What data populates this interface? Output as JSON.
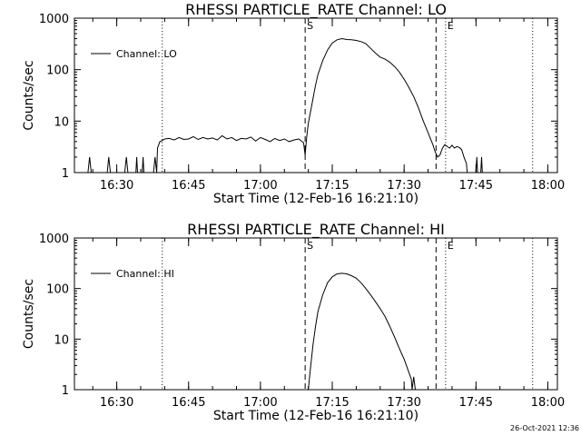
{
  "footer": {
    "timestamp": "26-Oct-2021 12:36"
  },
  "chart_data": [
    {
      "type": "line",
      "title": "RHESSI PARTICLE_RATE Channel: LO",
      "xlabel": "Start Time (12-Feb-16 16:21:10)",
      "ylabel": "Counts/sec",
      "y_scale": "log",
      "ylim": [
        1,
        1000
      ],
      "xlim": [
        "16:21:10",
        "18:02:00"
      ],
      "x_ticks": [
        "16:30",
        "16:45",
        "17:00",
        "17:15",
        "17:30",
        "17:45",
        "18:00"
      ],
      "y_ticks": [
        "1",
        "10",
        "100",
        "1000"
      ],
      "grid": false,
      "legend": {
        "position": "top-left",
        "entries": [
          "Channel: LO"
        ]
      },
      "markers": [
        {
          "label": "",
          "x": "16:39:30",
          "style": "dotted"
        },
        {
          "label": "S",
          "x": "17:09:20",
          "style": "dashed"
        },
        {
          "label": "",
          "x": "17:36:40",
          "style": "dashed"
        },
        {
          "label": "E",
          "x": "17:38:40",
          "style": "dotted"
        },
        {
          "label": "",
          "x": "17:56:50",
          "style": "dotted"
        }
      ],
      "series": [
        {
          "name": "Channel: LO",
          "x": [
            "16:24:00",
            "16:24:20",
            "16:24:40",
            "16:28:00",
            "16:28:20",
            "16:28:40",
            "16:31:40",
            "16:32:00",
            "16:32:20",
            "16:34:00",
            "16:34:10",
            "16:34:20",
            "16:35:20",
            "16:35:30",
            "16:35:40",
            "16:37:40",
            "16:38:00",
            "16:38:20",
            "16:38:30",
            "16:39:00",
            "16:39:30",
            "16:40:00",
            "16:41:00",
            "16:42:00",
            "16:43:00",
            "16:44:00",
            "16:45:00",
            "16:46:00",
            "16:47:00",
            "16:48:00",
            "16:49:00",
            "16:50:00",
            "16:51:00",
            "16:52:00",
            "16:53:00",
            "16:54:00",
            "16:55:00",
            "16:56:00",
            "16:57:00",
            "16:58:00",
            "16:59:00",
            "17:00:00",
            "17:01:00",
            "17:02:00",
            "17:03:00",
            "17:04:00",
            "17:05:00",
            "17:06:00",
            "17:07:00",
            "17:08:00",
            "17:09:00",
            "17:09:20",
            "17:09:40",
            "17:10:00",
            "17:10:30",
            "17:11:00",
            "17:11:30",
            "17:12:00",
            "17:13:00",
            "17:14:00",
            "17:15:00",
            "17:16:00",
            "17:17:00",
            "17:18:00",
            "17:19:00",
            "17:20:00",
            "17:21:00",
            "17:22:00",
            "17:23:00",
            "17:24:00",
            "17:25:00",
            "17:26:00",
            "17:27:00",
            "17:28:00",
            "17:29:00",
            "17:30:00",
            "17:31:00",
            "17:32:00",
            "17:33:00",
            "17:34:00",
            "17:35:00",
            "17:36:00",
            "17:36:30",
            "17:37:00",
            "17:37:30",
            "17:38:00",
            "17:38:30",
            "17:39:00",
            "17:39:30",
            "17:40:00",
            "17:40:30",
            "17:41:00",
            "17:41:30",
            "17:42:00",
            "17:42:30",
            "17:43:00",
            "17:43:10",
            "17:43:20",
            "17:43:40",
            "17:45:00",
            "17:45:10",
            "17:45:20",
            "17:46:00",
            "17:46:10",
            "17:46:20"
          ],
          "y": [
            1.0,
            2.0,
            1.0,
            1.0,
            2.0,
            1.0,
            1.0,
            2.0,
            1.0,
            1.0,
            2.0,
            1.0,
            1.0,
            2.0,
            1.0,
            1.0,
            2.0,
            1.0,
            3.0,
            4.0,
            4.2,
            4.5,
            4.6,
            4.3,
            4.8,
            4.4,
            4.5,
            5.0,
            4.4,
            4.8,
            4.5,
            4.7,
            4.3,
            5.2,
            4.5,
            4.8,
            4.2,
            4.6,
            4.5,
            4.9,
            4.1,
            4.8,
            4.4,
            4.0,
            4.6,
            4.2,
            4.5,
            4.0,
            4.3,
            4.5,
            3.8,
            2.2,
            5.0,
            9.0,
            16.0,
            28.0,
            50.0,
            80.0,
            150.0,
            240.0,
            330.0,
            380.0,
            400.0,
            385.0,
            380.0,
            370.0,
            350.0,
            320.0,
            260.0,
            210.0,
            175.0,
            160.0,
            140.0,
            115.0,
            90.0,
            65.0,
            45.0,
            30.0,
            18.0,
            10.0,
            6.0,
            3.5,
            2.5,
            2.0,
            2.2,
            3.0,
            3.5,
            3.2,
            3.0,
            3.4,
            3.0,
            3.2,
            3.1,
            2.8,
            2.0,
            1.5,
            1.0,
            1.0,
            1.0,
            1.0,
            2.0,
            1.0,
            1.0,
            2.0,
            1.0
          ]
        }
      ]
    },
    {
      "type": "line",
      "title": "RHESSI PARTICLE_RATE Channel: HI",
      "xlabel": "Start Time (12-Feb-16 16:21:10)",
      "ylabel": "Counts/sec",
      "y_scale": "log",
      "ylim": [
        1,
        1000
      ],
      "xlim": [
        "16:21:10",
        "18:02:00"
      ],
      "x_ticks": [
        "16:30",
        "16:45",
        "17:00",
        "17:15",
        "17:30",
        "17:45",
        "18:00"
      ],
      "y_ticks": [
        "1",
        "10",
        "100",
        "1000"
      ],
      "grid": false,
      "legend": {
        "position": "top-left",
        "entries": [
          "Channel: HI"
        ]
      },
      "markers": [
        {
          "label": "",
          "x": "16:39:30",
          "style": "dotted"
        },
        {
          "label": "S",
          "x": "17:09:20",
          "style": "dashed"
        },
        {
          "label": "",
          "x": "17:36:40",
          "style": "dashed"
        },
        {
          "label": "E",
          "x": "17:38:40",
          "style": "dotted"
        },
        {
          "label": "",
          "x": "17:56:50",
          "style": "dotted"
        }
      ],
      "series": [
        {
          "name": "Channel: HI",
          "x": [
            "17:10:00",
            "17:10:30",
            "17:11:00",
            "17:11:30",
            "17:12:00",
            "17:13:00",
            "17:14:00",
            "17:15:00",
            "17:16:00",
            "17:17:00",
            "17:18:00",
            "17:19:00",
            "17:20:00",
            "17:21:00",
            "17:22:00",
            "17:23:00",
            "17:24:00",
            "17:25:00",
            "17:26:00",
            "17:27:00",
            "17:28:00",
            "17:29:00",
            "17:30:00",
            "17:31:00",
            "17:31:30",
            "17:31:40",
            "17:32:00",
            "17:32:20",
            "17:32:40"
          ],
          "y": [
            1.0,
            3.0,
            8.0,
            18.0,
            35.0,
            75.0,
            130.0,
            170.0,
            195.0,
            200.0,
            195.0,
            180.0,
            160.0,
            130.0,
            100.0,
            75.0,
            55.0,
            40.0,
            28.0,
            18.0,
            11.0,
            6.5,
            4.0,
            2.2,
            1.6,
            1.0,
            1.8,
            1.0,
            1.0
          ]
        }
      ]
    }
  ]
}
